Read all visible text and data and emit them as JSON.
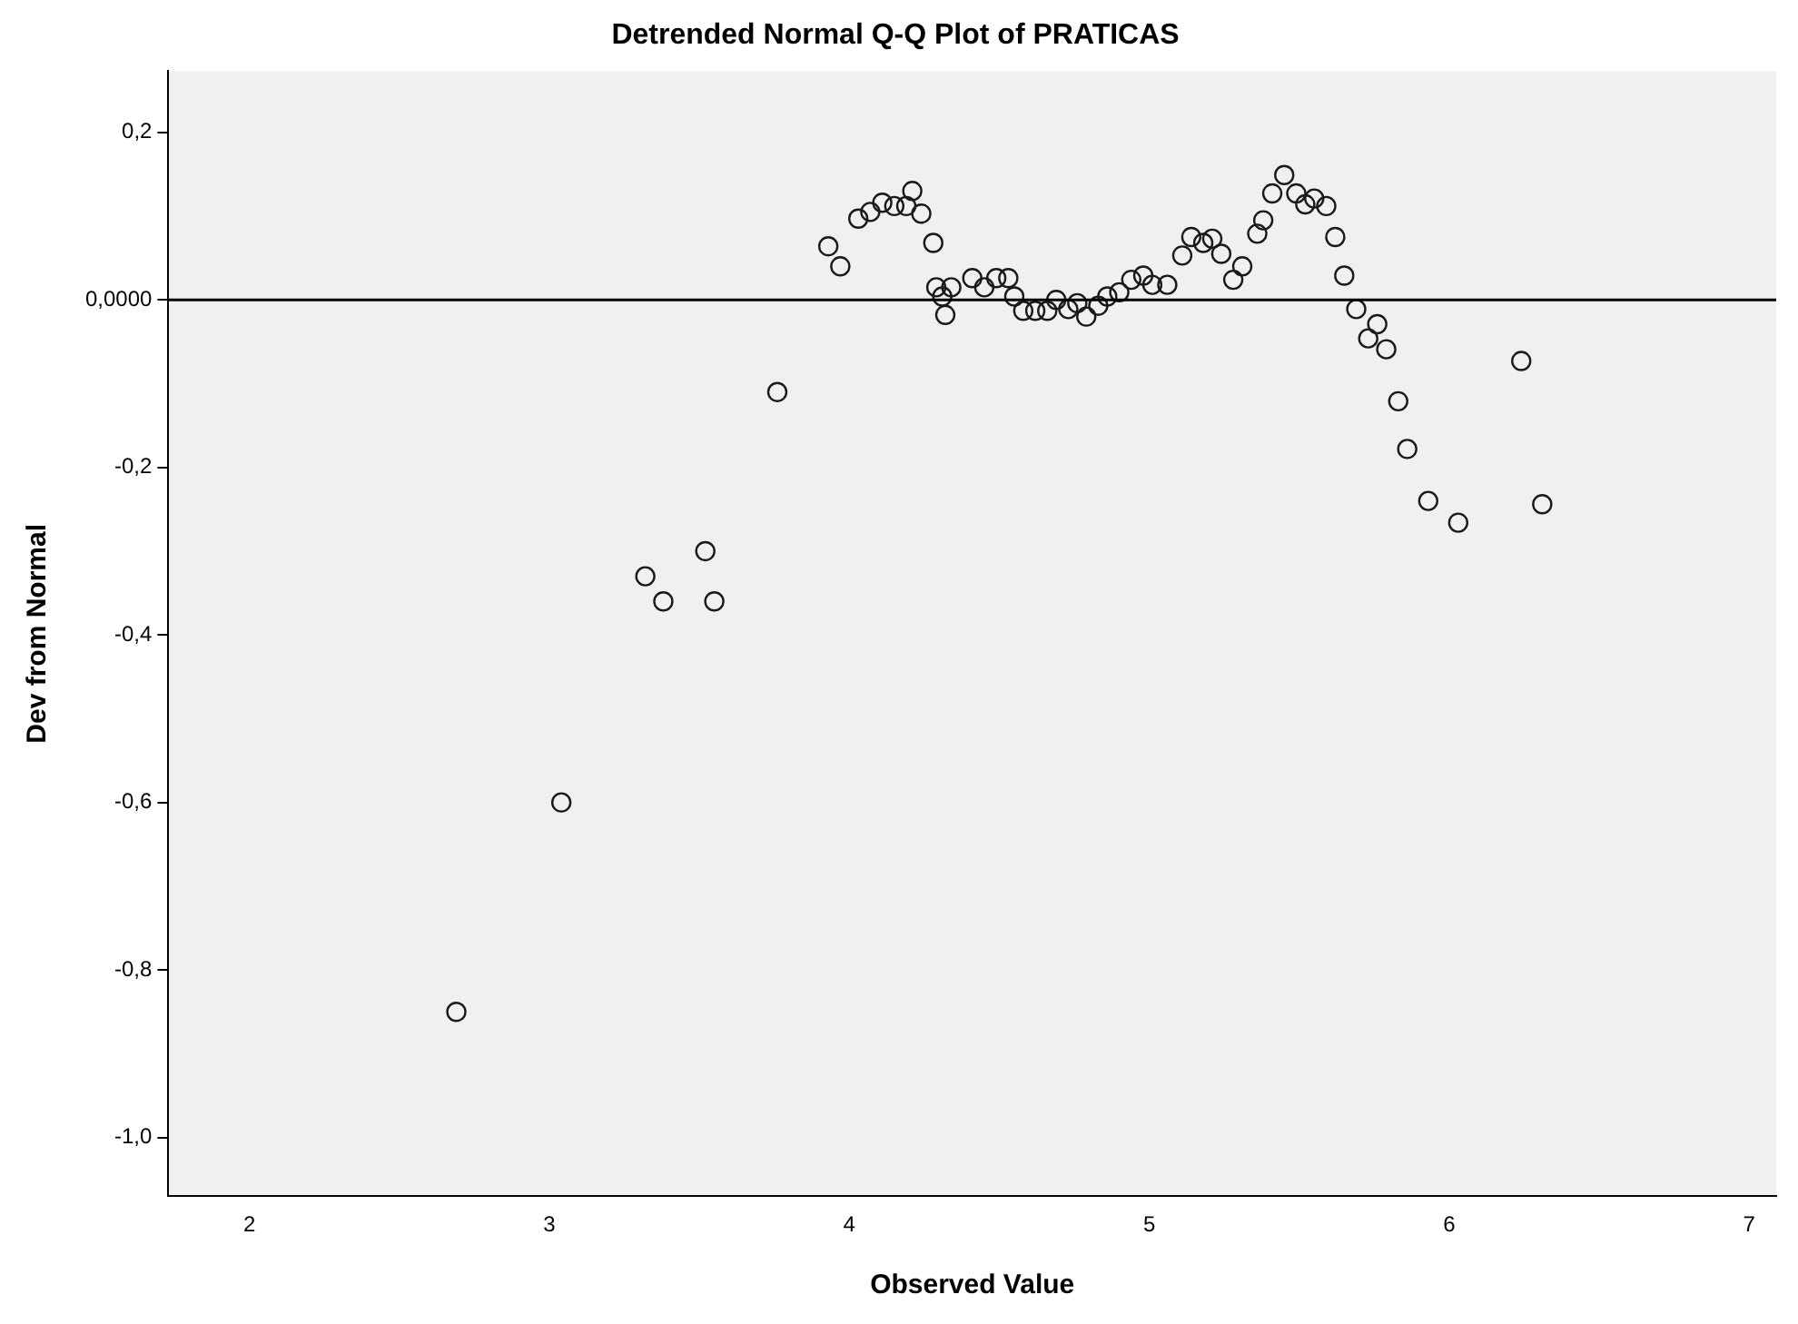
{
  "chart_data": {
    "type": "scatter",
    "title": "Detrended Normal Q-Q Plot of PRATICAS",
    "xlabel": "Observed Value",
    "ylabel": "Dev from Normal",
    "x": [
      2.69,
      3.04,
      3.32,
      3.38,
      3.52,
      3.55,
      3.76,
      3.93,
      3.97,
      4.03,
      4.07,
      4.11,
      4.15,
      4.19,
      4.21,
      4.24,
      4.28,
      4.29,
      4.31,
      4.32,
      4.34,
      4.41,
      4.45,
      4.49,
      4.53,
      4.55,
      4.58,
      4.62,
      4.66,
      4.69,
      4.73,
      4.76,
      4.79,
      4.83,
      4.86,
      4.9,
      4.94,
      4.98,
      5.01,
      5.06,
      5.11,
      5.14,
      5.18,
      5.21,
      5.24,
      5.28,
      5.31,
      5.36,
      5.38,
      5.41,
      5.45,
      5.49,
      5.52,
      5.55,
      5.59,
      5.62,
      5.65,
      5.69,
      5.73,
      5.76,
      5.79,
      5.83,
      5.86,
      5.93,
      6.03,
      6.24,
      6.31
    ],
    "values": [
      -0.85,
      -0.6,
      -0.33,
      -0.36,
      -0.3,
      -0.36,
      -0.11,
      0.064,
      0.04,
      0.097,
      0.105,
      0.116,
      0.112,
      0.112,
      0.13,
      0.103,
      0.068,
      0.015,
      0.004,
      -0.018,
      0.015,
      0.026,
      0.015,
      0.026,
      0.026,
      0.004,
      -0.013,
      -0.013,
      -0.013,
      0.0,
      -0.011,
      -0.004,
      -0.02,
      -0.007,
      0.004,
      0.009,
      0.024,
      0.029,
      0.018,
      0.018,
      0.053,
      0.075,
      0.068,
      0.073,
      0.055,
      0.024,
      0.04,
      0.079,
      0.095,
      0.127,
      0.149,
      0.127,
      0.114,
      0.121,
      0.112,
      0.075,
      0.029,
      -0.011,
      -0.046,
      -0.029,
      -0.059,
      -0.121,
      -0.178,
      -0.24,
      -0.266,
      -0.073,
      -0.244
    ],
    "color": "#1a1a1a",
    "marker": "circle",
    "xlim": [
      1.73,
      7.09
    ],
    "xticks": [
      2,
      3,
      4,
      5,
      6,
      7
    ],
    "ylim": [
      -1.07,
      0.273
    ],
    "yticks": [
      {
        "value": 0.2,
        "label": "0,2"
      },
      {
        "value": 0,
        "label": "0,0000"
      },
      {
        "value": -0.2,
        "label": "-0,2"
      },
      {
        "value": -0.4,
        "label": "-0,4"
      },
      {
        "value": -0.6,
        "label": "-0,6"
      },
      {
        "value": -0.8,
        "label": "-0,8"
      },
      {
        "value": -1.0,
        "label": "-1,0"
      }
    ],
    "ref_lines": [
      {
        "axis": "y",
        "value": 0,
        "color": "#000000"
      }
    ],
    "grid": false,
    "legend": false
  }
}
